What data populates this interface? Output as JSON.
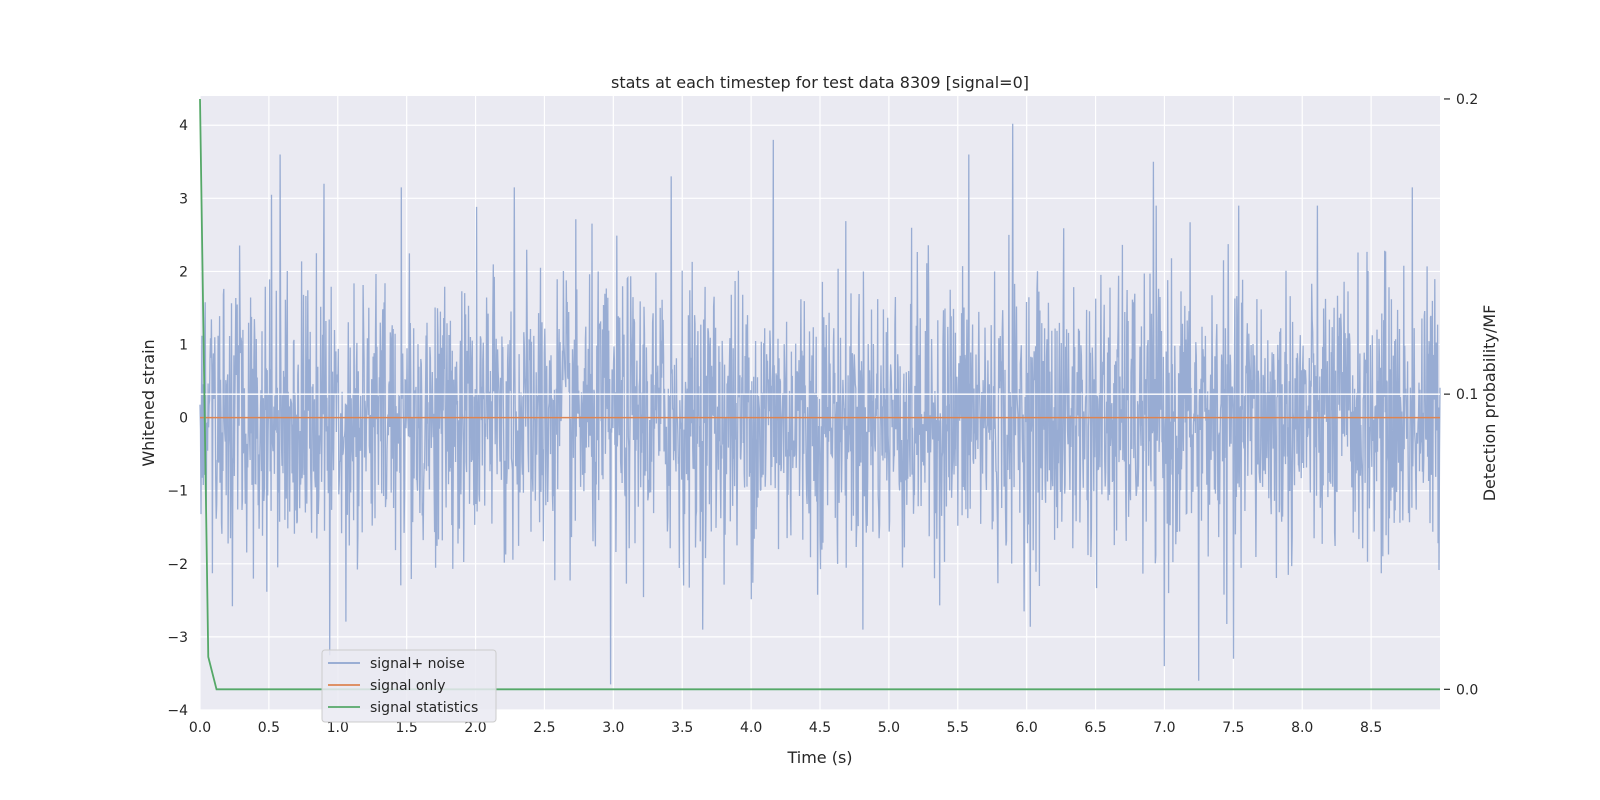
{
  "chart_data": {
    "type": "line",
    "title": "stats at each timestep for test data 8309 [signal=0]",
    "xlabel": "Time (s)",
    "ylabel": "Whitened strain",
    "y2label": "Detection probability/MF",
    "xlim": [
      0.0,
      9.0
    ],
    "ylim": [
      -4.0,
      4.4
    ],
    "y2lim": [
      -0.007,
      0.201
    ],
    "x_ticks": [
      "0.0",
      "0.5",
      "1.0",
      "1.5",
      "2.0",
      "2.5",
      "3.0",
      "3.5",
      "4.0",
      "4.5",
      "5.0",
      "5.5",
      "6.0",
      "6.5",
      "7.0",
      "7.5",
      "8.0",
      "8.5"
    ],
    "y_ticks": [
      "4",
      "3",
      "2",
      "1",
      "0",
      "−1",
      "−2",
      "−3",
      "−4"
    ],
    "y2_ticks": [
      "0.2",
      "0.1",
      "0.0"
    ],
    "grid": true,
    "legend_position": "lower-left",
    "series": [
      {
        "name": "signal+ noise",
        "color": "#8fa5cf",
        "axis": "left",
        "description_samples": "dense noise, roughly ±2 typical with peaks",
        "peaks": [
          {
            "x": 0.52,
            "y": 3.05
          },
          {
            "x": 0.58,
            "y": 3.6
          },
          {
            "x": 0.9,
            "y": 3.2
          },
          {
            "x": 0.94,
            "y": -3.25
          },
          {
            "x": 1.46,
            "y": 3.15
          },
          {
            "x": 2.28,
            "y": 3.15
          },
          {
            "x": 2.98,
            "y": -3.65
          },
          {
            "x": 3.42,
            "y": 3.3
          },
          {
            "x": 4.16,
            "y": 3.8
          },
          {
            "x": 5.58,
            "y": 3.6
          },
          {
            "x": 5.9,
            "y": 4.02
          },
          {
            "x": 6.92,
            "y": 3.5
          },
          {
            "x": 7.0,
            "y": -3.4
          },
          {
            "x": 7.25,
            "y": -3.6
          },
          {
            "x": 7.5,
            "y": -3.3
          },
          {
            "x": 8.8,
            "y": 3.15
          }
        ]
      },
      {
        "name": "signal only",
        "color": "#dd8452",
        "axis": "left",
        "x": [
          0.0,
          9.0
        ],
        "y": [
          0.0,
          0.0
        ]
      },
      {
        "name": "signal statistics",
        "color": "#55a868",
        "axis": "right",
        "x": [
          0.0,
          0.06,
          0.12,
          9.0
        ],
        "y": [
          0.2,
          0.011,
          0.0,
          0.0
        ]
      }
    ]
  }
}
